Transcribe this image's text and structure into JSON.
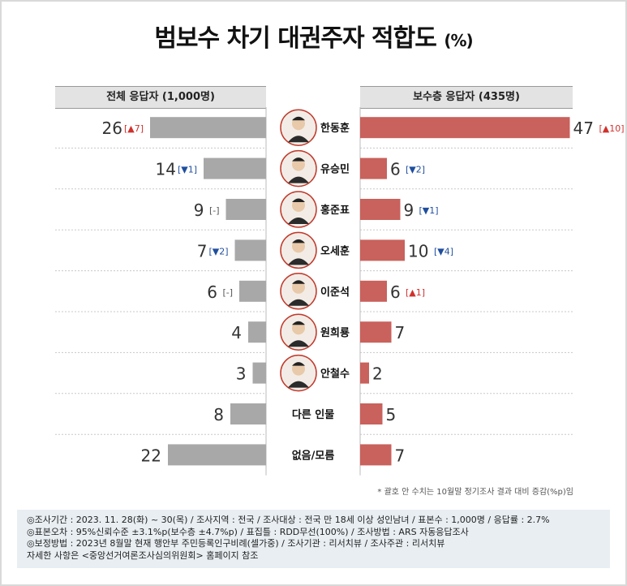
{
  "title": "범보수 차기 대권주자 적합도",
  "title_unit": "(%)",
  "headers": {
    "left": "전체 응답자 (1,000명)",
    "right": "보수층 응답자 (435명)"
  },
  "note": "* 괄호 안 수치는 10월말 정기조사 결과 대비 증감(%p)임",
  "footer": [
    "◎조사기간 : 2023. 11. 28(화) ~ 30(목) / 조사지역 : 전국 / 조사대상 : 전국 만 18세 이상 성인남녀 / 표본수 : 1,000명 / 응답률 : 2.7%",
    "◎표본오차 : 95%신뢰수준 ±3.1%p(보수층 ±4.7%p) / 표집틀 : RDD무선(100%) / 조사방법 : ARS 자동응답조사",
    "◎보정방법 : 2023년 8월말 현재 행안부 주민등록인구비례(셀가중) / 조사기관 : 리서치뷰 / 조사주관 : 리서치뷰",
    "자세한 사항은 <중앙선거여론조사심의위원회> 홈페이지 참조"
  ],
  "colors": {
    "left_bar": "#a8a8a8",
    "right_bar": "#c9615c",
    "up": "#d0312d",
    "down": "#1f4e9e",
    "flat": "#555555"
  },
  "chart_data": {
    "type": "bar",
    "categories": [
      "한동훈",
      "유승민",
      "홍준표",
      "오세훈",
      "이준석",
      "원희룡",
      "안철수",
      "다른 인물",
      "없음/모름"
    ],
    "series": [
      {
        "name": "전체 응답자 (1,000명)",
        "values": [
          26,
          14,
          9,
          7,
          6,
          4,
          3,
          8,
          22
        ],
        "changes": [
          "▲7",
          "▼1",
          "-",
          "▼2",
          "-",
          null,
          null,
          null,
          null
        ]
      },
      {
        "name": "보수층 응답자 (435명)",
        "values": [
          47,
          6,
          9,
          10,
          6,
          7,
          2,
          5,
          7
        ],
        "changes": [
          "▲10",
          "▼2",
          "▼1",
          "▼4",
          "▲1",
          null,
          null,
          null,
          null
        ]
      }
    ],
    "has_photo": [
      true,
      true,
      true,
      true,
      true,
      true,
      true,
      false,
      false
    ]
  }
}
